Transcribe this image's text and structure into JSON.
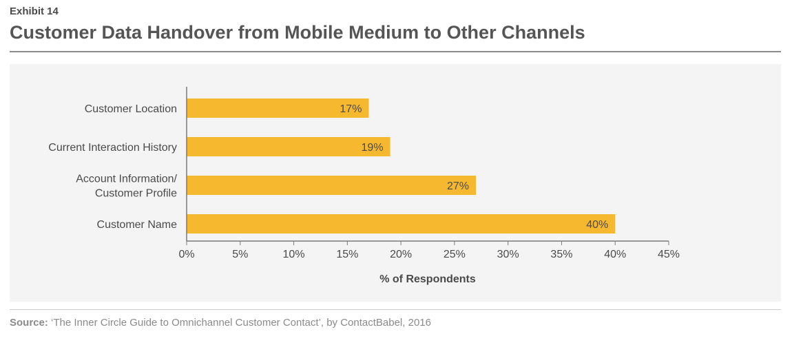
{
  "header": {
    "exhibit": "Exhibit 14",
    "title": "Customer Data Handover from Mobile Medium to Other Channels"
  },
  "source": {
    "label": "Source:",
    "text": " ‘The Inner Circle Guide to Omnichannel Customer Contact’, by ContactBabel, 2016"
  },
  "colors": {
    "bar": "#f6b82e",
    "axis": "#7a7a7a",
    "text": "#4a4a4a",
    "panel": "#f4f4f4"
  },
  "chart_data": {
    "type": "bar",
    "orientation": "horizontal",
    "categories": [
      [
        "Customer Location"
      ],
      [
        "Current Interaction History"
      ],
      [
        "Account Information/",
        "Customer Profile"
      ],
      [
        "Customer Name"
      ]
    ],
    "values": [
      17,
      19,
      27,
      40
    ],
    "data_labels": [
      "17%",
      "19%",
      "27%",
      "40%"
    ],
    "xlabel": "% of Respondents",
    "xlim": [
      0,
      45
    ],
    "xticks": [
      "0%",
      "5%",
      "10%",
      "15%",
      "20%",
      "25%",
      "30%",
      "35%",
      "40%",
      "45%"
    ],
    "grid": false,
    "legend": "none"
  }
}
